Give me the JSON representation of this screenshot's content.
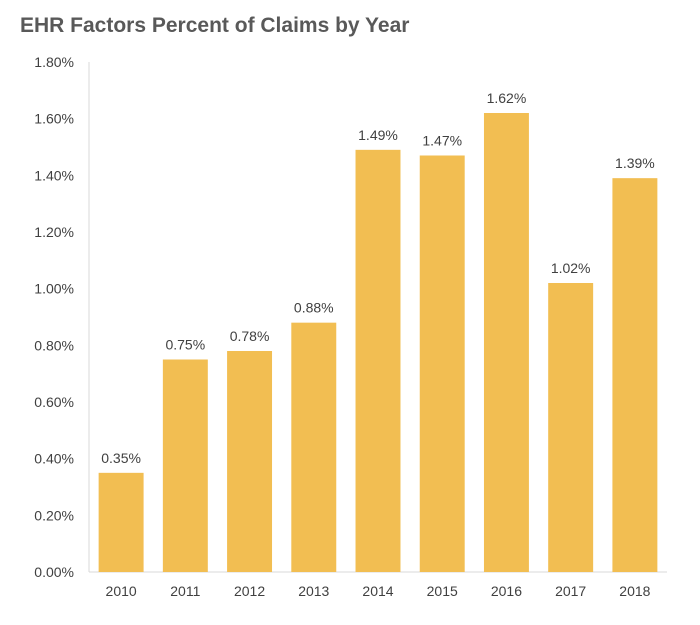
{
  "chart_data": {
    "type": "bar",
    "title": "EHR Factors Percent of Claims by Year",
    "xlabel": "",
    "ylabel": "",
    "categories": [
      "2010",
      "2011",
      "2012",
      "2013",
      "2014",
      "2015",
      "2016",
      "2017",
      "2018"
    ],
    "values": [
      0.35,
      0.75,
      0.78,
      0.88,
      1.49,
      1.47,
      1.62,
      1.02,
      1.39
    ],
    "data_labels": [
      "0.35%",
      "0.75%",
      "0.78%",
      "0.88%",
      "1.49%",
      "1.47%",
      "1.62%",
      "1.02%",
      "1.39%"
    ],
    "ylim": [
      0,
      1.8
    ],
    "y_ticks": [
      0,
      0.2,
      0.4,
      0.6,
      0.8,
      1.0,
      1.2,
      1.4,
      1.6,
      1.8
    ],
    "y_tick_labels": [
      "0.00%",
      "0.20%",
      "0.40%",
      "0.60%",
      "0.80%",
      "1.00%",
      "1.20%",
      "1.40%",
      "1.60%",
      "1.80%"
    ],
    "grid": false,
    "legend": "none",
    "bar_color": "#F2BE52",
    "axis_color": "#D9D9D9"
  }
}
